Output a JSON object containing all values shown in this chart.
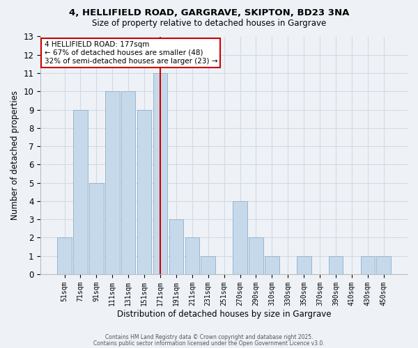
{
  "title_line1": "4, HELLIFIELD ROAD, GARGRAVE, SKIPTON, BD23 3NA",
  "title_line2": "Size of property relative to detached houses in Gargrave",
  "categories": [
    "51sqm",
    "71sqm",
    "91sqm",
    "111sqm",
    "131sqm",
    "151sqm",
    "171sqm",
    "191sqm",
    "211sqm",
    "231sqm",
    "251sqm",
    "270sqm",
    "290sqm",
    "310sqm",
    "330sqm",
    "350sqm",
    "370sqm",
    "390sqm",
    "410sqm",
    "430sqm",
    "450sqm"
  ],
  "values": [
    2,
    9,
    5,
    10,
    10,
    9,
    11,
    3,
    2,
    1,
    0,
    4,
    2,
    1,
    0,
    1,
    0,
    1,
    0,
    1,
    1
  ],
  "bar_color": "#c6d9ea",
  "bar_edge_color": "#9ab5cc",
  "grid_color": "#d0dae6",
  "background_color": "#eef2f7",
  "vline_x_index": 6,
  "vline_color": "#cc0000",
  "annotation_text": "4 HELLIFIELD ROAD: 177sqm\n← 67% of detached houses are smaller (48)\n32% of semi-detached houses are larger (23) →",
  "annotation_box_color": "#ffffff",
  "annotation_box_edge": "#cc0000",
  "xlabel": "Distribution of detached houses by size in Gargrave",
  "ylabel": "Number of detached properties",
  "ylim": [
    0,
    13
  ],
  "yticks": [
    0,
    1,
    2,
    3,
    4,
    5,
    6,
    7,
    8,
    9,
    10,
    11,
    12,
    13
  ],
  "footnote1": "Contains HM Land Registry data © Crown copyright and database right 2025.",
  "footnote2": "Contains public sector information licensed under the Open Government Licence v3.0."
}
